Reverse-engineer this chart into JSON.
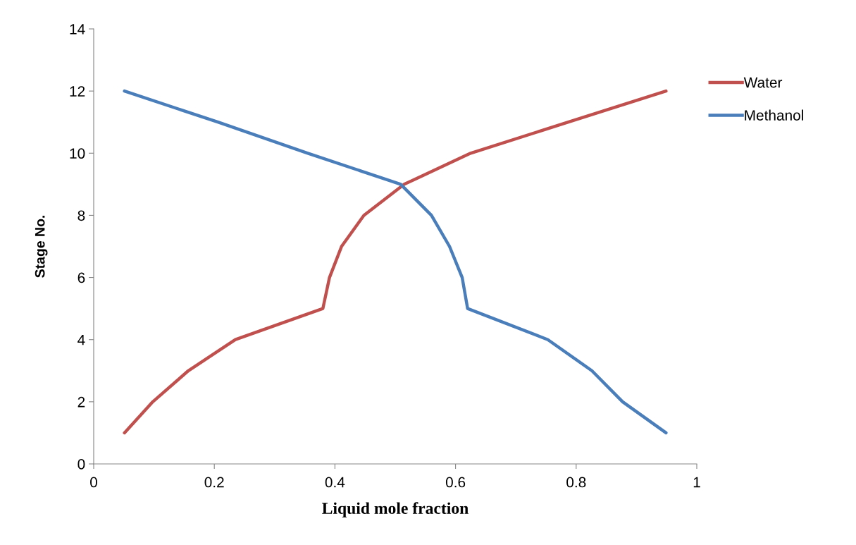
{
  "chart_data": {
    "type": "line",
    "xlabel": "Liquid mole fraction",
    "ylabel": "Stage No.",
    "xlim": [
      0,
      1
    ],
    "xticks": [
      0,
      0.2,
      0.4,
      0.6,
      0.8,
      1
    ],
    "ylim": [
      0,
      14
    ],
    "yticks": [
      0,
      2,
      4,
      6,
      8,
      10,
      12,
      14
    ],
    "grid": false,
    "legend": "right",
    "marker": "none",
    "line_style": "solid",
    "series": [
      {
        "name": "Water",
        "color": "#c0504d",
        "x": [
          0.051,
          0.098,
          0.157,
          0.235,
          0.38,
          0.391,
          0.411,
          0.448,
          0.515,
          0.625,
          0.787,
          0.949
        ],
        "values": [
          1,
          2,
          3,
          4,
          5,
          6,
          7,
          8,
          9,
          10,
          11,
          12
        ]
      },
      {
        "name": "Methanol",
        "color": "#4a7ebb",
        "x": [
          0.949,
          0.877,
          0.826,
          0.753,
          0.62,
          0.611,
          0.59,
          0.56,
          0.509,
          0.355,
          0.206,
          0.051
        ],
        "values": [
          1,
          2,
          3,
          4,
          5,
          6,
          7,
          8,
          9,
          10,
          11,
          12
        ]
      }
    ]
  }
}
